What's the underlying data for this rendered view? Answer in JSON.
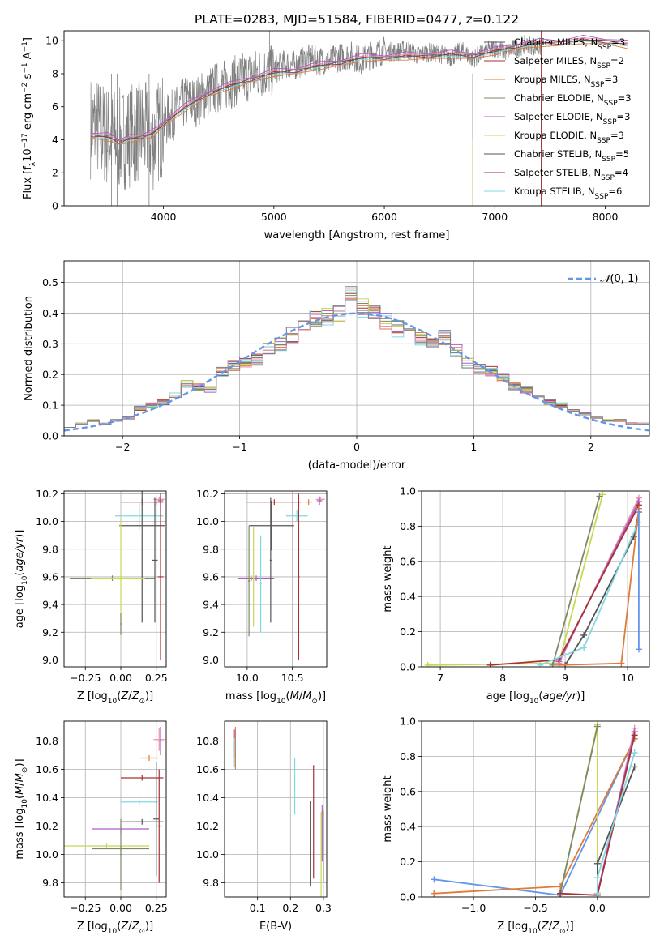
{
  "figure_title": "PLATE=0283, MJD=51584, FIBERID=0477, z=0.122",
  "colors": {
    "c0": "#6495ed",
    "c1": "#e07b39",
    "c2": "#7a8b6a",
    "c3": "#b05cc6",
    "c4": "#c8d850",
    "c5": "#555555",
    "c6": "#a83232",
    "c7": "#80d8e0",
    "c8": "#e890b0",
    "gray": "#808080"
  },
  "chart_data": [
    {
      "id": "spectrum",
      "type": "line",
      "xlabel": "wavelength [Angstrom, rest frame]",
      "ylabel": "Flux [f_λ10^-17 erg cm^-2 s^-1 A^-1]",
      "xlim": [
        3100,
        8400
      ],
      "ylim": [
        0,
        10.6
      ],
      "xticks": [
        4000,
        5000,
        6000,
        7000,
        8000
      ],
      "yticks": [
        0,
        2,
        4,
        6,
        8,
        10
      ],
      "grid": false,
      "legend_position": "top-right",
      "legend": [
        {
          "label": "Chabrier MILES, N_SSP=3",
          "color": "c5"
        },
        {
          "label": "Salpeter MILES, N_SSP=2",
          "color": "c6"
        },
        {
          "label": "Kroupa MILES, N_SSP=3",
          "color": "c1"
        },
        {
          "label": "Chabrier ELODIE, N_SSP=3",
          "color": "c2"
        },
        {
          "label": "Salpeter ELODIE, N_SSP=3",
          "color": "c3"
        },
        {
          "label": "Kroupa ELODIE, N_SSP=3",
          "color": "c4"
        },
        {
          "label": "Chabrier STELIB, N_SSP=5",
          "color": "c5"
        },
        {
          "label": "Salpeter STELIB, N_SSP=4",
          "color": "c6"
        },
        {
          "label": "Kroupa STELIB, N_SSP=6",
          "color": "c7"
        }
      ],
      "data_series": {
        "name": "data",
        "color": "gray",
        "x": [
          3340,
          3400,
          3500,
          3600,
          3700,
          3800,
          3900,
          4000,
          4100,
          4200,
          4300,
          4400,
          4500,
          4600,
          4700,
          4800,
          4900,
          5000,
          5100,
          5200,
          5300,
          5400,
          5500,
          5600,
          5700,
          5800,
          5900,
          6000,
          6100,
          6200,
          6300,
          6400,
          6500,
          6600,
          6700,
          6800,
          6900,
          7000,
          7100,
          7200,
          7300,
          7400
        ],
        "y": [
          4.8,
          4.7,
          4.2,
          4.0,
          4.3,
          4.6,
          3.9,
          5.0,
          5.6,
          6.3,
          6.3,
          6.9,
          7.2,
          7.4,
          7.7,
          7.9,
          8.1,
          8.2,
          8.6,
          8.5,
          8.9,
          8.8,
          8.8,
          9.0,
          9.1,
          8.8,
          9.2,
          9.4,
          9.3,
          9.5,
          9.1,
          9.3,
          9.2,
          9.0,
          9.4,
          8.9,
          9.3,
          9.6,
          9.3,
          9.6,
          9.8,
          9.6
        ]
      },
      "model_series": {
        "x": [
          3340,
          3500,
          3600,
          3700,
          3800,
          3900,
          4000,
          4200,
          4400,
          4600,
          4800,
          5000,
          5200,
          5400,
          5600,
          5800,
          6000,
          6200,
          6400,
          6600,
          6800,
          7000,
          7200,
          7400,
          7600,
          7800,
          8000,
          8200
        ],
        "y": [
          4.3,
          4.1,
          3.9,
          4.0,
          4.2,
          4.3,
          5.0,
          5.9,
          6.8,
          7.2,
          7.7,
          8.0,
          8.2,
          8.4,
          8.7,
          8.9,
          9.0,
          9.0,
          9.1,
          9.1,
          9.1,
          9.3,
          9.7,
          9.8,
          9.9,
          10.0,
          10.0,
          9.7
        ]
      }
    },
    {
      "id": "residual-hist",
      "type": "line",
      "xlabel": "(data-model)/error",
      "ylabel": "Normed distribution",
      "xlim": [
        -2.5,
        2.5
      ],
      "ylim": [
        0,
        0.57
      ],
      "xticks": [
        -2,
        -1,
        0,
        1,
        2
      ],
      "yticks": [
        0.0,
        0.1,
        0.2,
        0.3,
        0.4,
        0.5
      ],
      "grid": true,
      "legend_position": "top-right",
      "legend": [
        {
          "label": "N(0, 1)",
          "color": "c0"
        }
      ],
      "bin_centers": [
        -2.45,
        -2.35,
        -2.25,
        -2.15,
        -2.05,
        -1.95,
        -1.85,
        -1.75,
        -1.65,
        -1.55,
        -1.45,
        -1.35,
        -1.25,
        -1.15,
        -1.05,
        -0.95,
        -0.85,
        -0.75,
        -0.65,
        -0.55,
        -0.45,
        -0.35,
        -0.25,
        -0.15,
        -0.05,
        0.05,
        0.15,
        0.25,
        0.35,
        0.45,
        0.55,
        0.65,
        0.75,
        0.85,
        0.95,
        1.05,
        1.15,
        1.25,
        1.35,
        1.45,
        1.55,
        1.65,
        1.75,
        1.85,
        1.95,
        2.05,
        2.15,
        2.25,
        2.35,
        2.45
      ],
      "densities": [
        0.03,
        0.04,
        0.05,
        0.04,
        0.05,
        0.06,
        0.09,
        0.1,
        0.11,
        0.13,
        0.17,
        0.16,
        0.15,
        0.21,
        0.23,
        0.24,
        0.25,
        0.28,
        0.3,
        0.33,
        0.35,
        0.38,
        0.39,
        0.4,
        0.46,
        0.42,
        0.4,
        0.37,
        0.35,
        0.33,
        0.32,
        0.31,
        0.32,
        0.28,
        0.24,
        0.22,
        0.21,
        0.19,
        0.16,
        0.15,
        0.13,
        0.11,
        0.1,
        0.08,
        0.07,
        0.06,
        0.05,
        0.05,
        0.04,
        0.04
      ],
      "histogram_colors": [
        "c5",
        "c6",
        "c1",
        "c2",
        "c3",
        "c4",
        "c7",
        "c8",
        "gray"
      ],
      "gaussian": {
        "mean": 0,
        "sigma": 1
      }
    },
    {
      "id": "age-vs-z",
      "type": "scatter",
      "xlabel": "Z [log10(Z/Z⊙)]",
      "ylabel": "age  [log10(age/yr)]",
      "xlim": [
        -0.4,
        0.32
      ],
      "ylim": [
        8.95,
        10.22
      ],
      "xticks": [
        -0.25,
        0.0,
        0.25
      ],
      "xticklabels": [
        "−0.25",
        "0.00",
        "0.25"
      ],
      "yticks": [
        9.0,
        9.2,
        9.4,
        9.6,
        9.8,
        10.0,
        10.2
      ],
      "grid": true,
      "points": [
        {
          "x": 0.27,
          "y": 10.16,
          "xerr": 0.04,
          "yerr": 0.02,
          "color": "c8"
        },
        {
          "x": 0.28,
          "y": 10.15,
          "xerr": 0.02,
          "yerr": 0.03,
          "color": "c3"
        },
        {
          "x": 0.25,
          "y": 10.14,
          "xerr": 0.05,
          "yerr": 0.02,
          "color": "c1"
        },
        {
          "x": 0.15,
          "y": 10.14,
          "xerr": 0.15,
          "yerr": 0.02,
          "color": "c6"
        },
        {
          "x": 0.13,
          "y": 10.04,
          "xerr": 0.17,
          "yerr": 0.1,
          "color": "c7"
        },
        {
          "x": 0.15,
          "y": 9.97,
          "xerr": 0.16,
          "yerr": 0.7,
          "color": "c5"
        },
        {
          "x": 0.0,
          "y": 9.6,
          "xerr": 0.02,
          "yerr": 0.42,
          "color": "c4"
        },
        {
          "x": -0.06,
          "y": 9.59,
          "xerr": 0.3,
          "yerr": 0.02,
          "color": "c2"
        },
        {
          "x": -0.02,
          "y": 9.59,
          "xerr": 0.19,
          "yerr": 0.02,
          "color": "c4"
        },
        {
          "x": 0.28,
          "y": 9.6,
          "xerr": 0.02,
          "yerr": 0.6,
          "color": "c6"
        },
        {
          "x": 0.24,
          "y": 9.72,
          "xerr": 0.02,
          "yerr": 0.45,
          "color": "c5"
        },
        {
          "x": 0.0,
          "y": 9.26,
          "xerr": 0.005,
          "yerr": 0.08,
          "color": "c2"
        }
      ]
    },
    {
      "id": "age-vs-mass",
      "type": "scatter",
      "xlabel": "mass [log10(M/M⊙)]",
      "ylabel": "",
      "xlim": [
        9.75,
        10.88
      ],
      "ylim": [
        8.95,
        10.22
      ],
      "xticks": [
        10.0,
        10.5
      ],
      "xticklabels": [
        "10.0",
        "10.5"
      ],
      "yticks": [
        9.0,
        9.2,
        9.4,
        9.6,
        9.8,
        10.0,
        10.2
      ],
      "grid": true,
      "points": [
        {
          "x": 10.81,
          "y": 10.16,
          "xerr": 0.05,
          "yerr": 0.02,
          "color": "c8"
        },
        {
          "x": 10.8,
          "y": 10.15,
          "xerr": 0.03,
          "yerr": 0.03,
          "color": "c3"
        },
        {
          "x": 10.68,
          "y": 10.14,
          "xerr": 0.04,
          "yerr": 0.02,
          "color": "c1"
        },
        {
          "x": 10.3,
          "y": 10.14,
          "xerr": 0.3,
          "yerr": 0.02,
          "color": "c6"
        },
        {
          "x": 10.55,
          "y": 10.04,
          "xerr": 0.12,
          "yerr": 0.04,
          "color": "c7"
        },
        {
          "x": 10.27,
          "y": 9.97,
          "xerr": 0.25,
          "yerr": 0.18,
          "color": "c5"
        },
        {
          "x": 10.05,
          "y": 9.59,
          "xerr": 0.12,
          "yerr": 0.02,
          "color": "c4"
        },
        {
          "x": 10.1,
          "y": 9.59,
          "xerr": 0.2,
          "yerr": 0.02,
          "color": "c3"
        },
        {
          "x": 10.07,
          "y": 9.6,
          "xerr": 0.01,
          "yerr": 0.36,
          "color": "c4"
        },
        {
          "x": 10.02,
          "y": 9.57,
          "xerr": 0.01,
          "yerr": 0.4,
          "color": "c2"
        },
        {
          "x": 10.57,
          "y": 9.6,
          "xerr": 0.01,
          "yerr": 0.6,
          "color": "c6"
        },
        {
          "x": 10.15,
          "y": 9.55,
          "xerr": 0.01,
          "yerr": 0.35,
          "color": "c7"
        },
        {
          "x": 10.26,
          "y": 9.72,
          "xerr": 0.01,
          "yerr": 0.45,
          "color": "c5"
        }
      ]
    },
    {
      "id": "mass-weight-vs-age",
      "type": "line",
      "xlabel": "age  [log10(age/yr)]",
      "ylabel": "mass weight",
      "xlim": [
        6.7,
        10.35
      ],
      "ylim": [
        0,
        1.0
      ],
      "xticks": [
        7,
        8,
        9,
        10
      ],
      "yticks": [
        0.0,
        0.2,
        0.4,
        0.6,
        0.8,
        1.0
      ],
      "grid": true,
      "series": [
        {
          "color": "c4",
          "x": [
            6.8,
            8.9,
            9.6
          ],
          "y": [
            0.01,
            0.02,
            0.98
          ]
        },
        {
          "color": "c2",
          "x": [
            8.8,
            9.55
          ],
          "y": [
            0.01,
            0.97
          ]
        },
        {
          "color": "c8",
          "x": [
            8.9,
            10.18
          ],
          "y": [
            0.02,
            0.96
          ]
        },
        {
          "color": "c3",
          "x": [
            8.9,
            10.18
          ],
          "y": [
            0.03,
            0.94
          ]
        },
        {
          "color": "c6",
          "x": [
            7.8,
            8.9,
            10.18
          ],
          "y": [
            0.01,
            0.04,
            0.92
          ]
        },
        {
          "color": "c5",
          "x": [
            9.0,
            9.3,
            10.1,
            10.18
          ],
          "y": [
            0.01,
            0.18,
            0.74,
            0.88
          ]
        },
        {
          "color": "c7",
          "x": [
            8.6,
            9.3,
            10.17
          ],
          "y": [
            0.01,
            0.11,
            0.82
          ]
        },
        {
          "color": "c1",
          "x": [
            8.9,
            9.9,
            10.18
          ],
          "y": [
            0.01,
            0.02,
            0.9
          ]
        },
        {
          "color": "c0",
          "x": [
            10.18,
            10.18
          ],
          "y": [
            0.1,
            0.88
          ]
        }
      ]
    },
    {
      "id": "mass-vs-z",
      "type": "scatter",
      "xlabel": "Z [log10(Z/Z⊙)]",
      "ylabel": "mass [log10(M/M⊙)]",
      "xlim": [
        -0.4,
        0.32
      ],
      "ylim": [
        9.7,
        10.94
      ],
      "xticks": [
        -0.25,
        0.0,
        0.25
      ],
      "xticklabels": [
        "−0.25",
        "0.00",
        "0.25"
      ],
      "yticks": [
        9.8,
        10.0,
        10.2,
        10.4,
        10.6,
        10.8
      ],
      "grid": true,
      "points": [
        {
          "x": 0.27,
          "y": 10.81,
          "xerr": 0.04,
          "yerr": 0.08,
          "color": "c8"
        },
        {
          "x": 0.28,
          "y": 10.8,
          "xerr": 0.02,
          "yerr": 0.1,
          "color": "c3"
        },
        {
          "x": 0.2,
          "y": 10.68,
          "xerr": 0.06,
          "yerr": 0.02,
          "color": "c1"
        },
        {
          "x": 0.15,
          "y": 10.54,
          "xerr": 0.15,
          "yerr": 0.02,
          "color": "c6"
        },
        {
          "x": 0.13,
          "y": 10.37,
          "xerr": 0.13,
          "yerr": 0.02,
          "color": "c7"
        },
        {
          "x": 0.27,
          "y": 10.2,
          "xerr": 0.02,
          "yerr": 0.4,
          "color": "c6"
        },
        {
          "x": 0.25,
          "y": 10.25,
          "xerr": 0.02,
          "yerr": 0.4,
          "color": "c5"
        },
        {
          "x": 0.15,
          "y": 10.23,
          "xerr": 0.15,
          "yerr": 0.02,
          "color": "c5"
        },
        {
          "x": 0.0,
          "y": 10.18,
          "xerr": 0.2,
          "yerr": 0.03,
          "color": "c3"
        },
        {
          "x": -0.1,
          "y": 10.06,
          "xerr": 0.3,
          "yerr": 0.02,
          "color": "c4"
        },
        {
          "x": 0.0,
          "y": 10.04,
          "xerr": 0.2,
          "yerr": 0.02,
          "color": "c2"
        },
        {
          "x": 0.0,
          "y": 10.0,
          "xerr": 0.005,
          "yerr": 0.25,
          "color": "c2"
        }
      ]
    },
    {
      "id": "mass-vs-ebv",
      "type": "scatter",
      "xlabel": "E(B-V)",
      "ylabel": "",
      "xlim": [
        0.0,
        0.31
      ],
      "ylim": [
        9.7,
        10.94
      ],
      "xticks": [
        0.1,
        0.2,
        0.3
      ],
      "xticklabels": [
        "0.1",
        "0.2",
        "0.3"
      ],
      "yticks": [
        9.8,
        10.0,
        10.2,
        10.4,
        10.6,
        10.8
      ],
      "grid": true,
      "points": [
        {
          "x": 0.03,
          "y": 10.78,
          "xerr": 0.0,
          "yerr": 0.1,
          "color": "c3"
        },
        {
          "x": 0.033,
          "y": 10.75,
          "xerr": 0.0,
          "yerr": 0.15,
          "color": "c1"
        },
        {
          "x": 0.03,
          "y": 10.72,
          "xerr": 0.0,
          "yerr": 0.1,
          "color": "c7"
        },
        {
          "x": 0.213,
          "y": 10.48,
          "xerr": 0.0,
          "yerr": 0.2,
          "color": "c7"
        },
        {
          "x": 0.27,
          "y": 10.23,
          "xerr": 0.0,
          "yerr": 0.4,
          "color": "c6"
        },
        {
          "x": 0.26,
          "y": 10.08,
          "xerr": 0.0,
          "yerr": 0.3,
          "color": "c5"
        },
        {
          "x": 0.296,
          "y": 10.15,
          "xerr": 0.0,
          "yerr": 0.2,
          "color": "c3"
        },
        {
          "x": 0.293,
          "y": 10.0,
          "xerr": 0.0,
          "yerr": 0.3,
          "color": "c4"
        },
        {
          "x": 0.3,
          "y": 10.06,
          "xerr": 0.0,
          "yerr": 0.25,
          "color": "c2"
        }
      ]
    },
    {
      "id": "mass-weight-vs-z",
      "type": "line",
      "xlabel": "Z [log10(Z/Z⊙)]",
      "ylabel": "mass weight",
      "xlim": [
        -1.42,
        0.42
      ],
      "ylim": [
        0,
        1.0
      ],
      "xticks": [
        -1.0,
        -0.5,
        0.0
      ],
      "xticklabels": [
        "−1.0",
        "−0.5",
        "0.0"
      ],
      "yticks": [
        0.0,
        0.2,
        0.4,
        0.6,
        0.8,
        1.0
      ],
      "grid": true,
      "series": [
        {
          "color": "c0",
          "x": [
            -1.32,
            -0.3,
            0.3
          ],
          "y": [
            0.1,
            0.01,
            0.9
          ]
        },
        {
          "color": "c1",
          "x": [
            -1.32,
            -0.3,
            0.3
          ],
          "y": [
            0.02,
            0.06,
            0.9
          ]
        },
        {
          "color": "c4",
          "x": [
            -0.3,
            0.0,
            0.0
          ],
          "y": [
            0.02,
            0.98,
            0.02
          ]
        },
        {
          "color": "c2",
          "x": [
            -0.3,
            0.0
          ],
          "y": [
            0.02,
            0.97
          ]
        },
        {
          "color": "c8",
          "x": [
            0.0,
            0.3
          ],
          "y": [
            0.01,
            0.96
          ]
        },
        {
          "color": "c3",
          "x": [
            0.0,
            0.3
          ],
          "y": [
            0.02,
            0.94
          ]
        },
        {
          "color": "c6",
          "x": [
            -0.3,
            0.0,
            0.3
          ],
          "y": [
            0.02,
            0.01,
            0.92
          ]
        },
        {
          "color": "c5",
          "x": [
            0.0,
            0.0,
            0.3
          ],
          "y": [
            0.02,
            0.19,
            0.74
          ]
        },
        {
          "color": "c7",
          "x": [
            0.0,
            0.0,
            0.3
          ],
          "y": [
            0.02,
            0.11,
            0.82
          ]
        }
      ]
    }
  ]
}
